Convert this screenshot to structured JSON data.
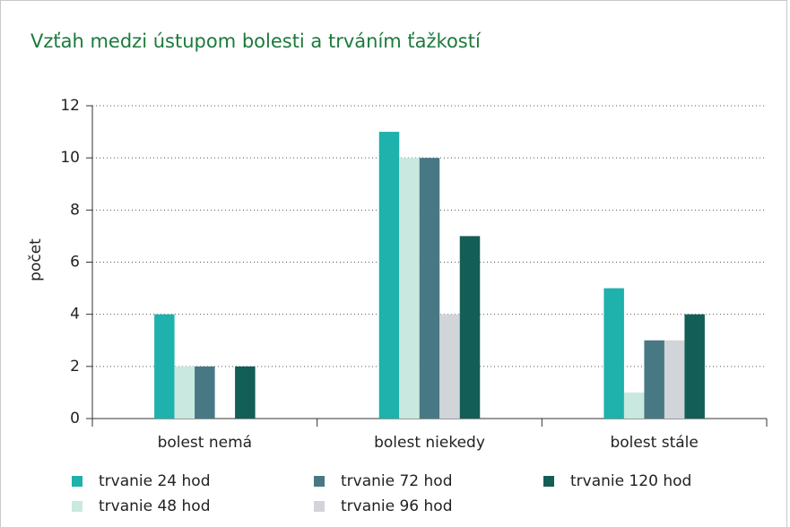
{
  "chart_data": {
    "type": "bar",
    "title": "Vzťah medzi ústupom bolesti a trváním ťažkostí",
    "ylabel": "počet",
    "categories": [
      "bolest nemá",
      "bolest niekedy",
      "bolest stále"
    ],
    "series": [
      {
        "name": "trvanie 24 hod",
        "color": "#1fb1ab",
        "values": [
          4,
          11,
          5
        ]
      },
      {
        "name": "trvanie 48 hod",
        "color": "#c9e8df",
        "values": [
          2,
          10,
          1
        ]
      },
      {
        "name": "trvanie 72 hod",
        "color": "#477884",
        "values": [
          2,
          10,
          3
        ]
      },
      {
        "name": "trvanie 96 hod",
        "color": "#d1d4d8",
        "values": [
          0,
          4,
          3
        ]
      },
      {
        "name": "trvanie 120 hod",
        "color": "#135e56",
        "values": [
          2,
          7,
          4
        ]
      }
    ],
    "ylim": [
      0,
      12
    ],
    "yticks": [
      0,
      2,
      4,
      6,
      8,
      10,
      12
    ],
    "grid": true
  }
}
